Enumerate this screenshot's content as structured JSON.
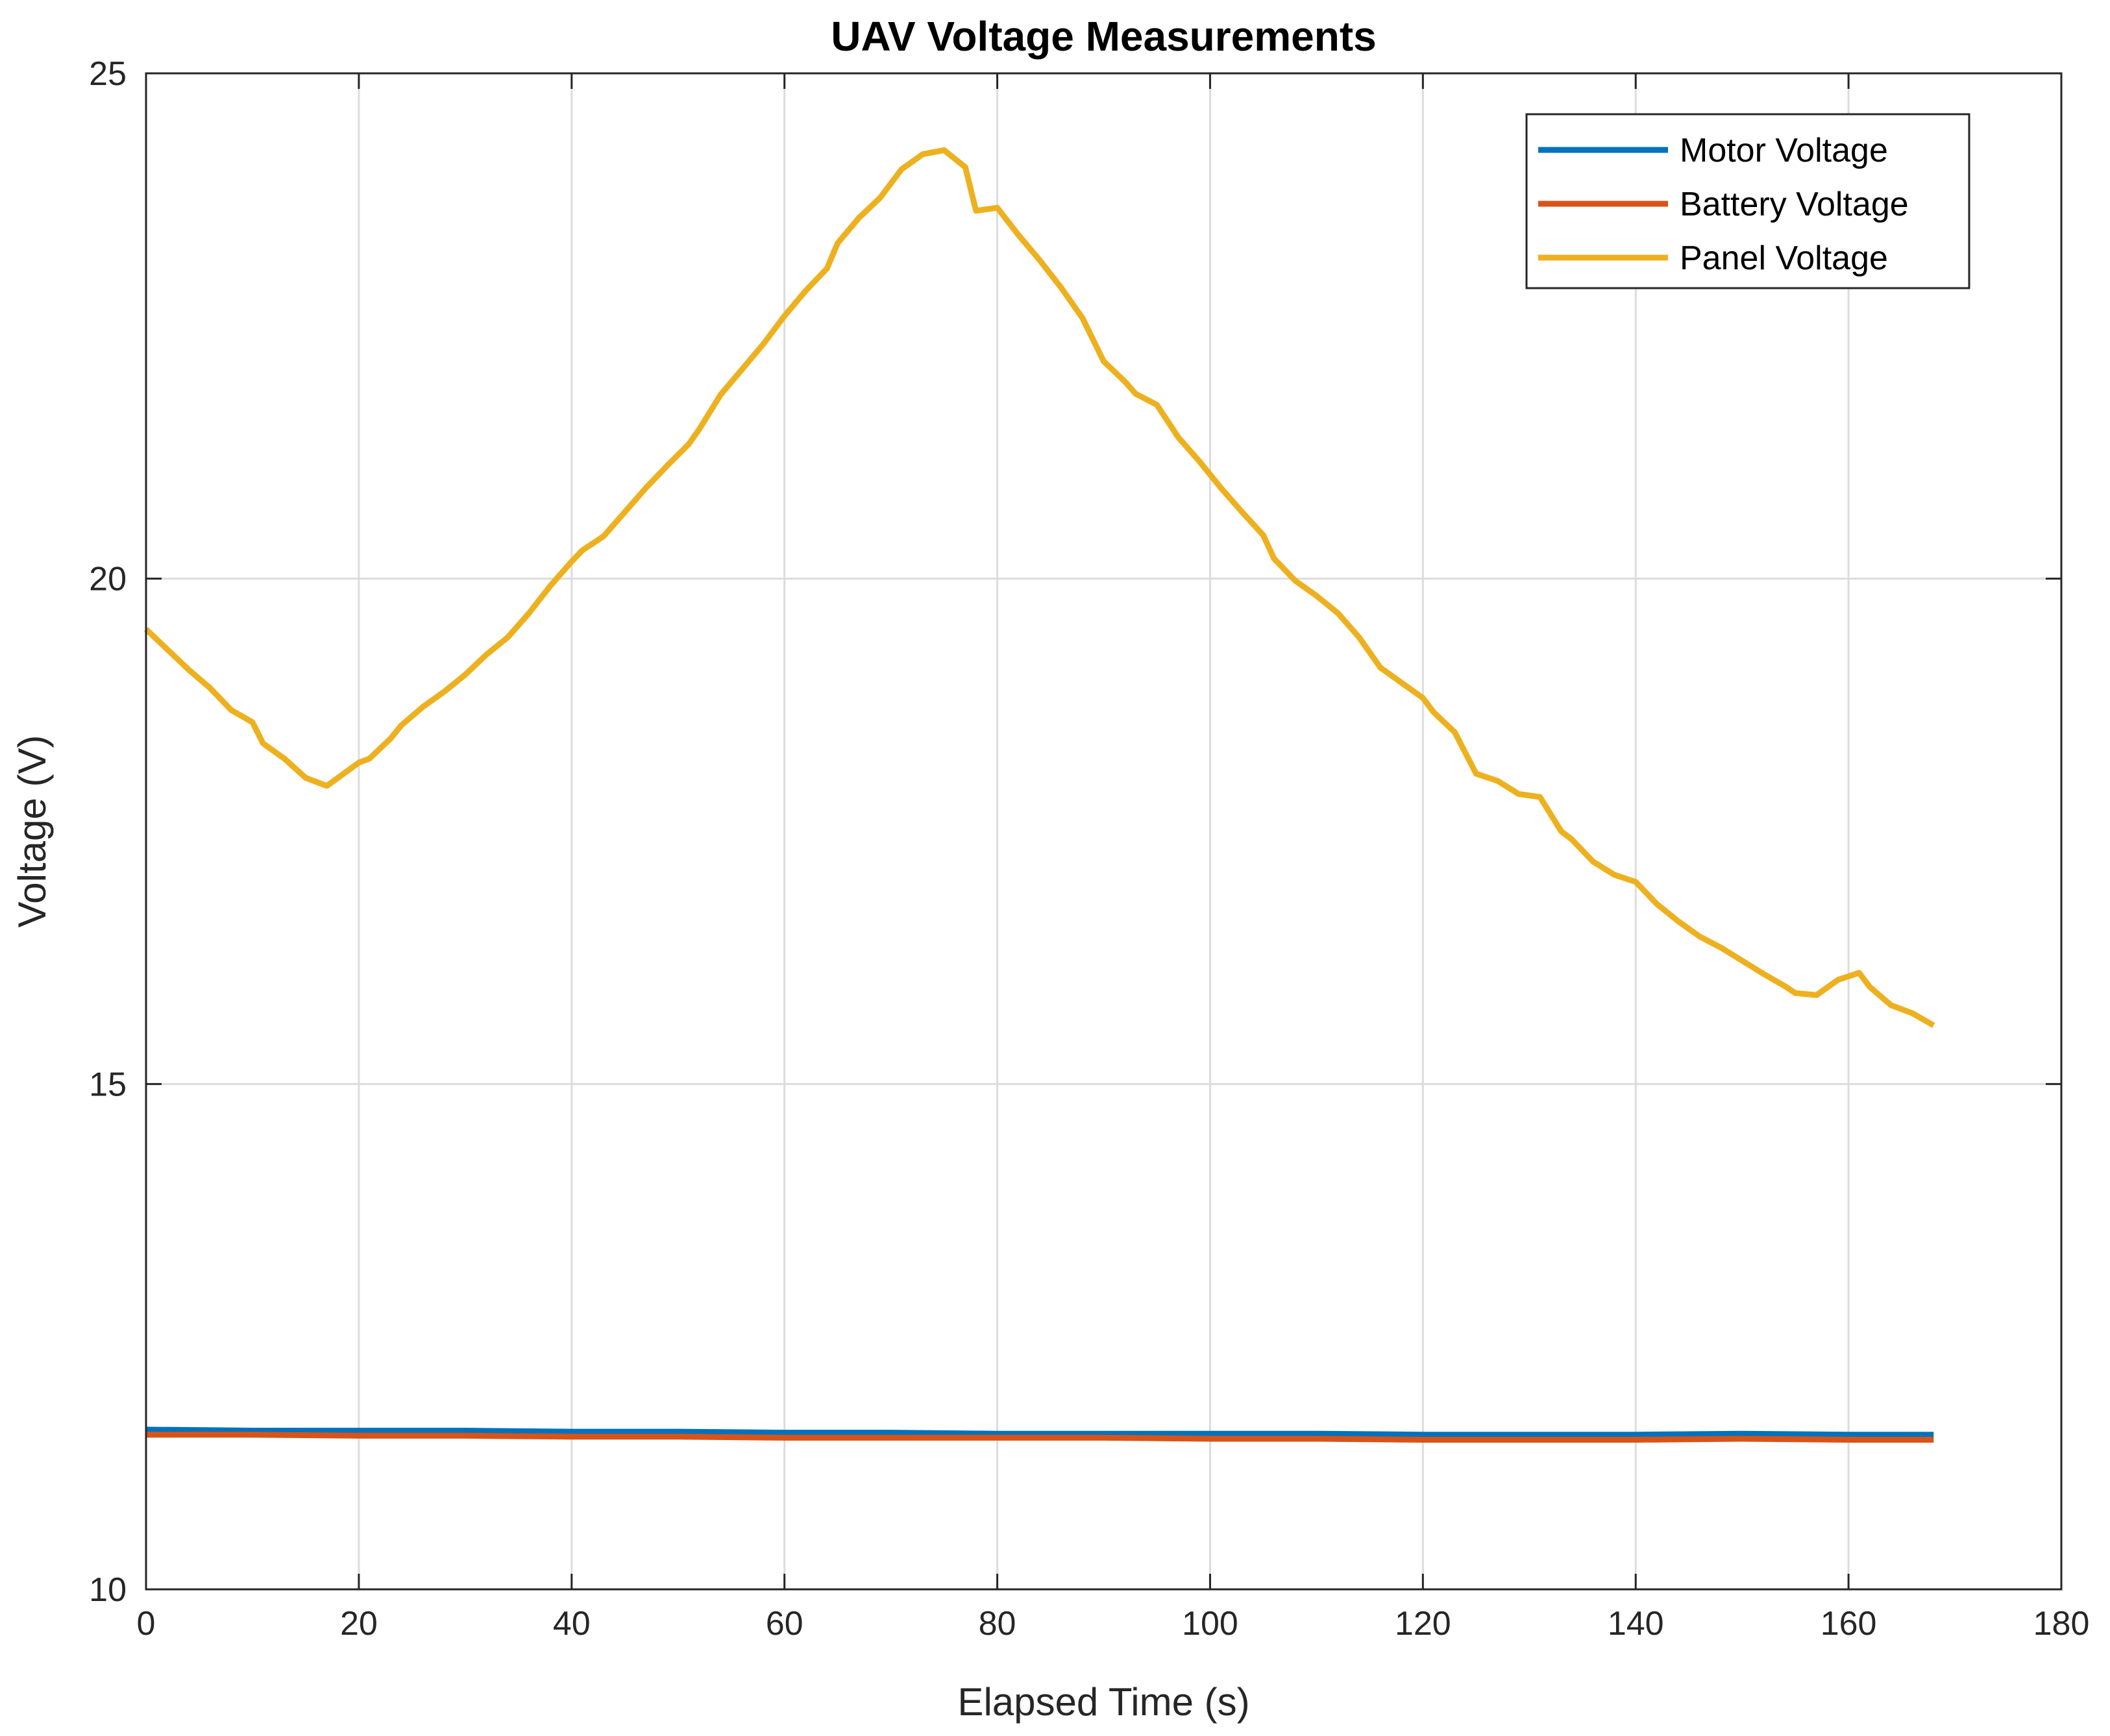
{
  "chart_data": {
    "type": "line",
    "title": "UAV Voltage Measurements",
    "xlabel": "Elapsed Time (s)",
    "ylabel": "Voltage (V)",
    "xlim": [
      0,
      180
    ],
    "ylim": [
      10,
      25
    ],
    "xticks": [
      0,
      20,
      40,
      60,
      80,
      100,
      120,
      140,
      160,
      180
    ],
    "yticks": [
      10,
      15,
      20,
      25
    ],
    "grid": true,
    "legend_position": "top-right",
    "series": [
      {
        "name": "Motor Voltage",
        "color": "#0072BD",
        "x": [
          0,
          10,
          20,
          30,
          40,
          50,
          60,
          70,
          80,
          90,
          100,
          110,
          120,
          130,
          140,
          150,
          160,
          168
        ],
        "y": [
          11.58,
          11.57,
          11.57,
          11.57,
          11.56,
          11.56,
          11.55,
          11.55,
          11.54,
          11.54,
          11.54,
          11.54,
          11.53,
          11.53,
          11.53,
          11.54,
          11.53,
          11.53
        ]
      },
      {
        "name": "Battery Voltage",
        "color": "#D95319",
        "x": [
          0,
          10,
          20,
          30,
          40,
          50,
          60,
          70,
          80,
          90,
          100,
          110,
          120,
          130,
          140,
          150,
          160,
          168
        ],
        "y": [
          11.53,
          11.53,
          11.52,
          11.52,
          11.51,
          11.51,
          11.5,
          11.5,
          11.5,
          11.5,
          11.49,
          11.49,
          11.48,
          11.48,
          11.48,
          11.49,
          11.48,
          11.48
        ]
      },
      {
        "name": "Panel Voltage",
        "color": "#EDB120",
        "x": [
          0,
          2,
          4,
          6,
          8,
          10,
          11,
          13,
          15,
          17,
          20,
          21,
          23,
          24,
          26,
          28,
          30,
          32,
          34,
          36,
          38,
          40,
          41,
          43,
          45,
          47,
          49,
          51,
          52,
          54,
          56,
          58,
          60,
          62,
          64,
          65,
          67,
          69,
          71,
          73,
          75,
          77,
          78,
          80,
          82,
          84,
          86,
          88,
          90,
          92,
          93,
          95,
          97,
          99,
          101,
          103,
          105,
          106,
          108,
          110,
          112,
          114,
          116,
          118,
          120,
          121,
          123,
          125,
          127,
          129,
          131,
          133,
          134,
          136,
          138,
          140,
          142,
          144,
          146,
          148,
          150,
          152,
          154,
          155,
          157,
          159,
          161,
          162,
          164,
          166,
          168
        ],
        "y": [
          19.5,
          19.3,
          19.1,
          18.92,
          18.7,
          18.58,
          18.37,
          18.22,
          18.03,
          17.95,
          18.18,
          18.22,
          18.42,
          18.55,
          18.73,
          18.88,
          19.05,
          19.25,
          19.42,
          19.66,
          19.93,
          20.17,
          20.28,
          20.42,
          20.66,
          20.9,
          21.12,
          21.33,
          21.48,
          21.82,
          22.07,
          22.32,
          22.6,
          22.85,
          23.07,
          23.32,
          23.57,
          23.77,
          24.05,
          24.2,
          24.24,
          24.07,
          23.64,
          23.67,
          23.4,
          23.15,
          22.88,
          22.58,
          22.15,
          21.95,
          21.83,
          21.72,
          21.4,
          21.16,
          20.9,
          20.66,
          20.43,
          20.2,
          19.98,
          19.83,
          19.66,
          19.42,
          19.12,
          18.97,
          18.82,
          18.68,
          18.48,
          18.07,
          18.0,
          17.87,
          17.84,
          17.5,
          17.42,
          17.2,
          17.07,
          17.0,
          16.78,
          16.61,
          16.46,
          16.35,
          16.22,
          16.09,
          15.97,
          15.9,
          15.88,
          16.03,
          16.1,
          15.96,
          15.78,
          15.7,
          15.58
        ]
      }
    ]
  }
}
